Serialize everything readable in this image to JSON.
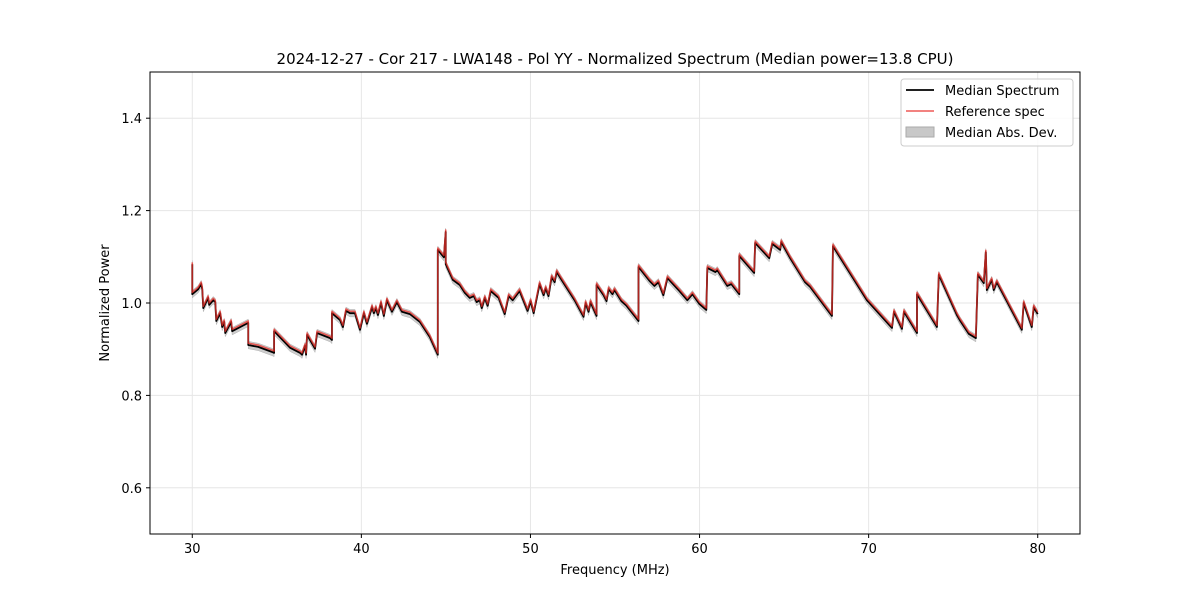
{
  "chart_data": {
    "type": "line",
    "title": "2024-12-27 - Cor 217 - LWA148 - Pol YY - Normalized Spectrum (Median power=13.8 CPU)",
    "xlabel": "Frequency (MHz)",
    "ylabel": "Normalized Power",
    "xlim": [
      27.5,
      82.5
    ],
    "ylim": [
      0.5,
      1.5
    ],
    "xticks": [
      30,
      40,
      50,
      60,
      70,
      80
    ],
    "xtick_labels": [
      "30",
      "40",
      "50",
      "60",
      "70",
      "80"
    ],
    "yticks": [
      0.6,
      0.8,
      1.0,
      1.2,
      1.4
    ],
    "ytick_labels": [
      "0.6",
      "0.8",
      "1.0",
      "1.2",
      "1.4"
    ],
    "grid": true,
    "legend_position": "top-right",
    "legend": [
      "Median Spectrum",
      "Reference spec",
      "Median Abs. Dev."
    ],
    "colors": {
      "median": "#000000",
      "reference": "#e8302a",
      "mad": "#c8c8c8"
    },
    "reference_offset_from_median": 0.004,
    "mad_halfwidth": 0.008,
    "median_points": [
      [
        30.0,
        1.084
      ],
      [
        30.0,
        1.019
      ],
      [
        30.35,
        1.03
      ],
      [
        30.53,
        1.041
      ],
      [
        30.59,
        1.03
      ],
      [
        30.65,
        0.989
      ],
      [
        30.94,
        1.011
      ],
      [
        31.0,
        0.996
      ],
      [
        31.24,
        1.006
      ],
      [
        31.36,
        1.002
      ],
      [
        31.42,
        0.961
      ],
      [
        31.65,
        0.978
      ],
      [
        31.77,
        0.948
      ],
      [
        31.89,
        0.959
      ],
      [
        31.95,
        0.935
      ],
      [
        32.3,
        0.959
      ],
      [
        32.36,
        0.939
      ],
      [
        33.31,
        0.957
      ],
      [
        33.31,
        0.909
      ],
      [
        33.9,
        0.905
      ],
      [
        34.72,
        0.894
      ],
      [
        34.84,
        0.892
      ],
      [
        34.84,
        0.939
      ],
      [
        35.79,
        0.903
      ],
      [
        36.38,
        0.892
      ],
      [
        36.49,
        0.888
      ],
      [
        36.67,
        0.907
      ],
      [
        36.73,
        0.888
      ],
      [
        36.79,
        0.931
      ],
      [
        37.26,
        0.901
      ],
      [
        37.38,
        0.935
      ],
      [
        38.15,
        0.924
      ],
      [
        38.26,
        0.92
      ],
      [
        38.26,
        0.978
      ],
      [
        38.74,
        0.963
      ],
      [
        38.91,
        0.948
      ],
      [
        39.09,
        0.983
      ],
      [
        39.33,
        0.978
      ],
      [
        39.62,
        0.978
      ],
      [
        39.92,
        0.942
      ],
      [
        40.15,
        0.978
      ],
      [
        40.33,
        0.955
      ],
      [
        40.63,
        0.991
      ],
      [
        40.74,
        0.978
      ],
      [
        40.86,
        0.989
      ],
      [
        40.98,
        0.974
      ],
      [
        41.16,
        1.0
      ],
      [
        41.33,
        0.972
      ],
      [
        41.51,
        1.006
      ],
      [
        41.81,
        0.981
      ],
      [
        42.1,
        1.002
      ],
      [
        42.4,
        0.981
      ],
      [
        42.87,
        0.976
      ],
      [
        43.46,
        0.959
      ],
      [
        44.05,
        0.926
      ],
      [
        44.52,
        0.888
      ],
      [
        44.52,
        1.115
      ],
      [
        44.88,
        1.099
      ],
      [
        44.99,
        1.154
      ],
      [
        44.99,
        1.084
      ],
      [
        45.41,
        1.05
      ],
      [
        45.82,
        1.039
      ],
      [
        46.12,
        1.022
      ],
      [
        46.41,
        1.011
      ],
      [
        46.65,
        1.015
      ],
      [
        46.82,
        1.002
      ],
      [
        47.0,
        1.006
      ],
      [
        47.12,
        0.989
      ],
      [
        47.3,
        1.011
      ],
      [
        47.47,
        0.994
      ],
      [
        47.65,
        1.026
      ],
      [
        48.12,
        1.011
      ],
      [
        48.48,
        0.976
      ],
      [
        48.71,
        1.015
      ],
      [
        48.95,
        1.006
      ],
      [
        49.36,
        1.026
      ],
      [
        49.83,
        0.983
      ],
      [
        50.01,
        1.004
      ],
      [
        50.19,
        0.978
      ],
      [
        50.54,
        1.041
      ],
      [
        50.78,
        1.017
      ],
      [
        50.9,
        1.032
      ],
      [
        51.07,
        1.015
      ],
      [
        51.25,
        1.056
      ],
      [
        51.43,
        1.045
      ],
      [
        51.55,
        1.067
      ],
      [
        51.84,
        1.05
      ],
      [
        52.61,
        1.006
      ],
      [
        53.14,
        0.97
      ],
      [
        53.26,
        1.0
      ],
      [
        53.44,
        0.981
      ],
      [
        53.55,
        1.002
      ],
      [
        53.91,
        0.972
      ],
      [
        53.91,
        1.039
      ],
      [
        54.32,
        1.017
      ],
      [
        54.5,
        1.004
      ],
      [
        54.62,
        1.03
      ],
      [
        54.85,
        1.019
      ],
      [
        54.97,
        1.028
      ],
      [
        55.38,
        1.004
      ],
      [
        55.68,
        0.994
      ],
      [
        56.39,
        0.961
      ],
      [
        56.39,
        1.078
      ],
      [
        57.04,
        1.048
      ],
      [
        57.33,
        1.037
      ],
      [
        57.57,
        1.045
      ],
      [
        57.86,
        1.017
      ],
      [
        58.1,
        1.054
      ],
      [
        58.81,
        1.026
      ],
      [
        59.28,
        1.006
      ],
      [
        59.58,
        1.019
      ],
      [
        59.99,
        0.998
      ],
      [
        60.4,
        0.985
      ],
      [
        60.46,
        1.076
      ],
      [
        60.94,
        1.067
      ],
      [
        61.05,
        1.071
      ],
      [
        61.64,
        1.037
      ],
      [
        61.88,
        1.041
      ],
      [
        62.35,
        1.019
      ],
      [
        62.35,
        1.102
      ],
      [
        63.23,
        1.065
      ],
      [
        63.29,
        1.13
      ],
      [
        64.12,
        1.097
      ],
      [
        64.3,
        1.128
      ],
      [
        64.77,
        1.115
      ],
      [
        64.83,
        1.132
      ],
      [
        65.36,
        1.097
      ],
      [
        66.24,
        1.045
      ],
      [
        66.54,
        1.035
      ],
      [
        67.83,
        0.972
      ],
      [
        67.89,
        1.123
      ],
      [
        69.9,
        1.006
      ],
      [
        71.38,
        0.946
      ],
      [
        71.5,
        0.981
      ],
      [
        71.97,
        0.944
      ],
      [
        72.09,
        0.981
      ],
      [
        72.86,
        0.935
      ],
      [
        72.86,
        1.019
      ],
      [
        74.04,
        0.948
      ],
      [
        74.15,
        1.061
      ],
      [
        75.22,
        0.974
      ],
      [
        75.39,
        0.963
      ],
      [
        75.93,
        0.933
      ],
      [
        76.34,
        0.924
      ],
      [
        76.46,
        1.061
      ],
      [
        76.81,
        1.043
      ],
      [
        76.93,
        1.11
      ],
      [
        76.99,
        1.028
      ],
      [
        77.28,
        1.05
      ],
      [
        77.4,
        1.028
      ],
      [
        77.58,
        1.045
      ],
      [
        79.06,
        0.942
      ],
      [
        79.17,
        1.0
      ],
      [
        79.65,
        0.948
      ],
      [
        79.76,
        0.991
      ],
      [
        80.0,
        0.976
      ]
    ]
  }
}
